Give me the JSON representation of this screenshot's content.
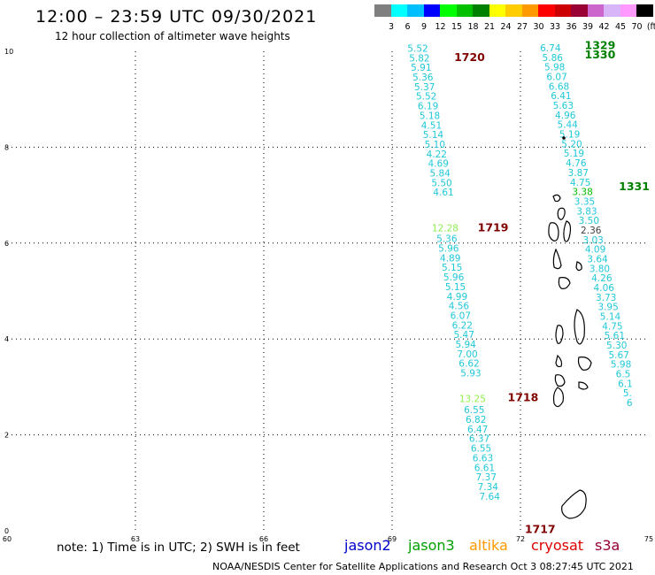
{
  "header": {
    "title": "12:00 – 23:59 UTC 09/30/2021",
    "subtitle": "12 hour collection of altimeter wave heights"
  },
  "legend_scale": {
    "labels": [
      "3",
      "6",
      "9",
      "12",
      "15",
      "18",
      "21",
      "24",
      "27",
      "30",
      "33",
      "36",
      "39",
      "42",
      "45",
      "70",
      "(ft)"
    ],
    "colors": [
      "#7f7f7f",
      "#00ffff",
      "#00bfff",
      "#0000ff",
      "#00ff00",
      "#00c000",
      "#008000",
      "#ffff00",
      "#ffcc00",
      "#ff9900",
      "#ff0000",
      "#cc0000",
      "#990033",
      "#cc66cc",
      "#d8b4f8",
      "#ff99ff",
      "#000000"
    ]
  },
  "axes": {
    "x_ticks": [
      {
        "value": 60,
        "label": "60"
      },
      {
        "value": 63,
        "label": "63"
      },
      {
        "value": 66,
        "label": "66"
      },
      {
        "value": 69,
        "label": "69"
      },
      {
        "value": 72,
        "label": "72"
      },
      {
        "value": 75,
        "label": "75"
      }
    ],
    "y_ticks": [
      {
        "value": 0,
        "label": "0"
      },
      {
        "value": 2,
        "label": "2"
      },
      {
        "value": 4,
        "label": "4"
      },
      {
        "value": 6,
        "label": "6"
      },
      {
        "value": 8,
        "label": "8"
      },
      {
        "value": 10,
        "label": "10"
      }
    ],
    "xlim": [
      60,
      75
    ],
    "ylim": [
      0,
      10
    ]
  },
  "passes": [
    {
      "label": "1720",
      "lon": 70.45,
      "lat": 9.8,
      "color": "#800000"
    },
    {
      "label": "1719",
      "lon": 71.0,
      "lat": 6.25,
      "color": "#800000"
    },
    {
      "label": "1718",
      "lon": 71.7,
      "lat": 2.7,
      "color": "#800000"
    },
    {
      "label": "1717",
      "lon": 72.1,
      "lat": -0.05,
      "color": "#800000"
    },
    {
      "label": "1329",
      "lon": 73.5,
      "lat": 10.05,
      "color": "#008000"
    },
    {
      "label": "1330",
      "lon": 73.5,
      "lat": 9.85,
      "color": "#008000"
    },
    {
      "label": "1331",
      "lon": 74.3,
      "lat": 7.1,
      "color": "#008000"
    }
  ],
  "track_west": {
    "color": "#20c8d8",
    "points": [
      {
        "lon": 69.6,
        "lat": 9.99,
        "v": "5.52"
      },
      {
        "lon": 69.64,
        "lat": 9.79,
        "v": "5.82"
      },
      {
        "lon": 69.68,
        "lat": 9.59,
        "v": "5.91"
      },
      {
        "lon": 69.72,
        "lat": 9.39,
        "v": "5.36"
      },
      {
        "lon": 69.76,
        "lat": 9.19,
        "v": "5.37"
      },
      {
        "lon": 69.8,
        "lat": 8.99,
        "v": "5.52"
      },
      {
        "lon": 69.84,
        "lat": 8.79,
        "v": "6.19"
      },
      {
        "lon": 69.88,
        "lat": 8.59,
        "v": "5.18"
      },
      {
        "lon": 69.92,
        "lat": 8.39,
        "v": "4.51"
      },
      {
        "lon": 69.96,
        "lat": 8.19,
        "v": "5.14"
      },
      {
        "lon": 70.0,
        "lat": 7.99,
        "v": "5.10"
      },
      {
        "lon": 70.04,
        "lat": 7.79,
        "v": "4.22"
      },
      {
        "lon": 70.08,
        "lat": 7.59,
        "v": "4.69"
      },
      {
        "lon": 70.12,
        "lat": 7.39,
        "v": "5.84"
      },
      {
        "lon": 70.16,
        "lat": 7.19,
        "v": "5.50"
      },
      {
        "lon": 70.2,
        "lat": 6.99,
        "v": "4.61"
      },
      {
        "lon": 70.24,
        "lat": 6.25,
        "v": "12.28",
        "color": "#90ee50"
      },
      {
        "lon": 70.28,
        "lat": 6.02,
        "v": "5.36"
      },
      {
        "lon": 70.32,
        "lat": 5.82,
        "v": "5.96"
      },
      {
        "lon": 70.36,
        "lat": 5.62,
        "v": "4.89"
      },
      {
        "lon": 70.4,
        "lat": 5.42,
        "v": "5.15"
      },
      {
        "lon": 70.44,
        "lat": 5.22,
        "v": "5.96"
      },
      {
        "lon": 70.48,
        "lat": 5.02,
        "v": "5.15"
      },
      {
        "lon": 70.52,
        "lat": 4.82,
        "v": "4.99"
      },
      {
        "lon": 70.56,
        "lat": 4.62,
        "v": "4.56"
      },
      {
        "lon": 70.6,
        "lat": 4.42,
        "v": "6.07"
      },
      {
        "lon": 70.64,
        "lat": 4.22,
        "v": "6.22"
      },
      {
        "lon": 70.68,
        "lat": 4.02,
        "v": "5.47"
      },
      {
        "lon": 70.72,
        "lat": 3.82,
        "v": "5.94"
      },
      {
        "lon": 70.76,
        "lat": 3.62,
        "v": "7.00"
      },
      {
        "lon": 70.8,
        "lat": 3.42,
        "v": "6.62"
      },
      {
        "lon": 70.84,
        "lat": 3.22,
        "v": "5.93"
      },
      {
        "lon": 70.88,
        "lat": 2.68,
        "v": "13.25",
        "color": "#90ee50"
      },
      {
        "lon": 70.92,
        "lat": 2.45,
        "v": "6.55"
      },
      {
        "lon": 70.96,
        "lat": 2.25,
        "v": "6.82"
      },
      {
        "lon": 71.0,
        "lat": 2.05,
        "v": "6.47"
      },
      {
        "lon": 71.04,
        "lat": 1.85,
        "v": "6.37"
      },
      {
        "lon": 71.08,
        "lat": 1.65,
        "v": "6.55"
      },
      {
        "lon": 71.12,
        "lat": 1.45,
        "v": "6.63"
      },
      {
        "lon": 71.16,
        "lat": 1.25,
        "v": "6.61"
      },
      {
        "lon": 71.2,
        "lat": 1.05,
        "v": "7.37"
      },
      {
        "lon": 71.24,
        "lat": 0.85,
        "v": "7.34"
      },
      {
        "lon": 71.28,
        "lat": 0.65,
        "v": "7.64"
      }
    ]
  },
  "track_east": {
    "color": "#20c8d8",
    "points": [
      {
        "lon": 72.7,
        "lat": 10.0,
        "v": "6.74"
      },
      {
        "lon": 72.75,
        "lat": 9.8,
        "v": "5.86"
      },
      {
        "lon": 72.8,
        "lat": 9.6,
        "v": "5.98"
      },
      {
        "lon": 72.85,
        "lat": 9.4,
        "v": "6.07"
      },
      {
        "lon": 72.9,
        "lat": 9.2,
        "v": "6.68"
      },
      {
        "lon": 72.95,
        "lat": 9.0,
        "v": "6.41"
      },
      {
        "lon": 73.0,
        "lat": 8.8,
        "v": "5.63"
      },
      {
        "lon": 73.05,
        "lat": 8.6,
        "v": "4.96"
      },
      {
        "lon": 73.1,
        "lat": 8.4,
        "v": "5.44"
      },
      {
        "lon": 73.15,
        "lat": 8.2,
        "v": "5.19"
      },
      {
        "lon": 73.2,
        "lat": 8.0,
        "v": "5.20"
      },
      {
        "lon": 73.25,
        "lat": 7.8,
        "v": "5.19"
      },
      {
        "lon": 73.3,
        "lat": 7.6,
        "v": "4.76"
      },
      {
        "lon": 73.35,
        "lat": 7.4,
        "v": "3.87"
      },
      {
        "lon": 73.4,
        "lat": 7.2,
        "v": "4.75"
      },
      {
        "lon": 73.45,
        "lat": 7.0,
        "v": "3.38",
        "color": "#00c000"
      },
      {
        "lon": 73.5,
        "lat": 6.8,
        "v": "3.35"
      },
      {
        "lon": 73.55,
        "lat": 6.6,
        "v": "3.83"
      },
      {
        "lon": 73.6,
        "lat": 6.4,
        "v": "3.50"
      },
      {
        "lon": 73.65,
        "lat": 6.2,
        "v": "2.36",
        "color": "#404040"
      },
      {
        "lon": 73.7,
        "lat": 6.0,
        "v": "3.03"
      },
      {
        "lon": 73.75,
        "lat": 5.8,
        "v": "4.09"
      },
      {
        "lon": 73.8,
        "lat": 5.6,
        "v": "3.64"
      },
      {
        "lon": 73.85,
        "lat": 5.4,
        "v": "3.80"
      },
      {
        "lon": 73.9,
        "lat": 5.2,
        "v": "4.26"
      },
      {
        "lon": 73.95,
        "lat": 5.0,
        "v": "4.06"
      },
      {
        "lon": 74.0,
        "lat": 4.8,
        "v": "3.73"
      },
      {
        "lon": 74.05,
        "lat": 4.6,
        "v": "3.95"
      },
      {
        "lon": 74.1,
        "lat": 4.4,
        "v": "5.14"
      },
      {
        "lon": 74.15,
        "lat": 4.2,
        "v": "4.75"
      },
      {
        "lon": 74.2,
        "lat": 4.0,
        "v": "5.61"
      },
      {
        "lon": 74.25,
        "lat": 3.8,
        "v": "5.30"
      },
      {
        "lon": 74.3,
        "lat": 3.6,
        "v": "5.67"
      },
      {
        "lon": 74.35,
        "lat": 3.4,
        "v": "5.98"
      },
      {
        "lon": 74.4,
        "lat": 3.2,
        "v": "6.5"
      },
      {
        "lon": 74.45,
        "lat": 3.0,
        "v": "6.1"
      },
      {
        "lon": 74.5,
        "lat": 2.8,
        "v": "5."
      },
      {
        "lon": 74.55,
        "lat": 2.6,
        "v": "6"
      }
    ]
  },
  "footer": {
    "note": "note:  1) Time is in UTC;  2) SWH is in feet",
    "satellites": [
      {
        "name": "jason2",
        "color": "#0000cc"
      },
      {
        "name": "jason3",
        "color": "#00a000"
      },
      {
        "name": "altika",
        "color": "#ff9900"
      },
      {
        "name": "cryosat",
        "color": "#dd0000"
      },
      {
        "name": "s3a",
        "color": "#990033"
      }
    ],
    "credit": "NOAA/NESDIS Center for Satellite Applications and Research    Oct  3 08:27:45 UTC 2021"
  }
}
